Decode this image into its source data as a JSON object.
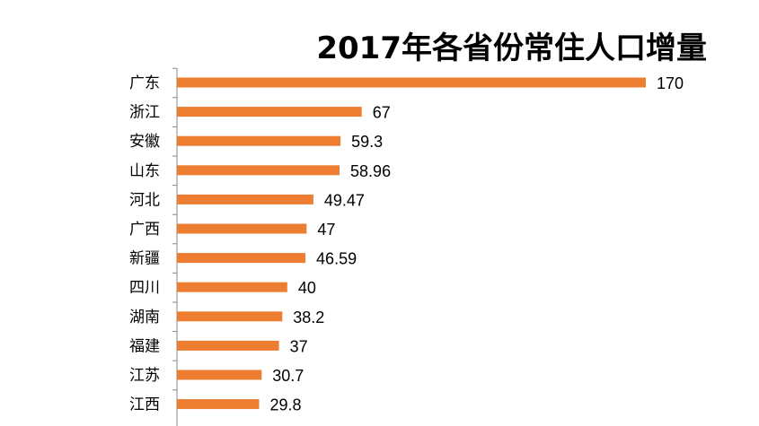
{
  "chart_data": {
    "type": "bar",
    "orientation": "horizontal",
    "title": "2017年各省份常住人口增量",
    "categories": [
      "广东",
      "浙江",
      "安徽",
      "山东",
      "河北",
      "广西",
      "新疆",
      "四川",
      "湖南",
      "福建",
      "江苏",
      "江西"
    ],
    "values": [
      170,
      67,
      59.3,
      58.96,
      49.47,
      47,
      46.59,
      40,
      38.2,
      37,
      30.7,
      29.8
    ],
    "value_labels": [
      "170",
      "67",
      "59.3",
      "58.96",
      "49.47",
      "47",
      "46.59",
      "40",
      "38.2",
      "37",
      "30.7",
      "29.8"
    ],
    "bar_color": "#ED7D31",
    "xlim": [
      0,
      170
    ],
    "grid": false,
    "legend": "none"
  }
}
